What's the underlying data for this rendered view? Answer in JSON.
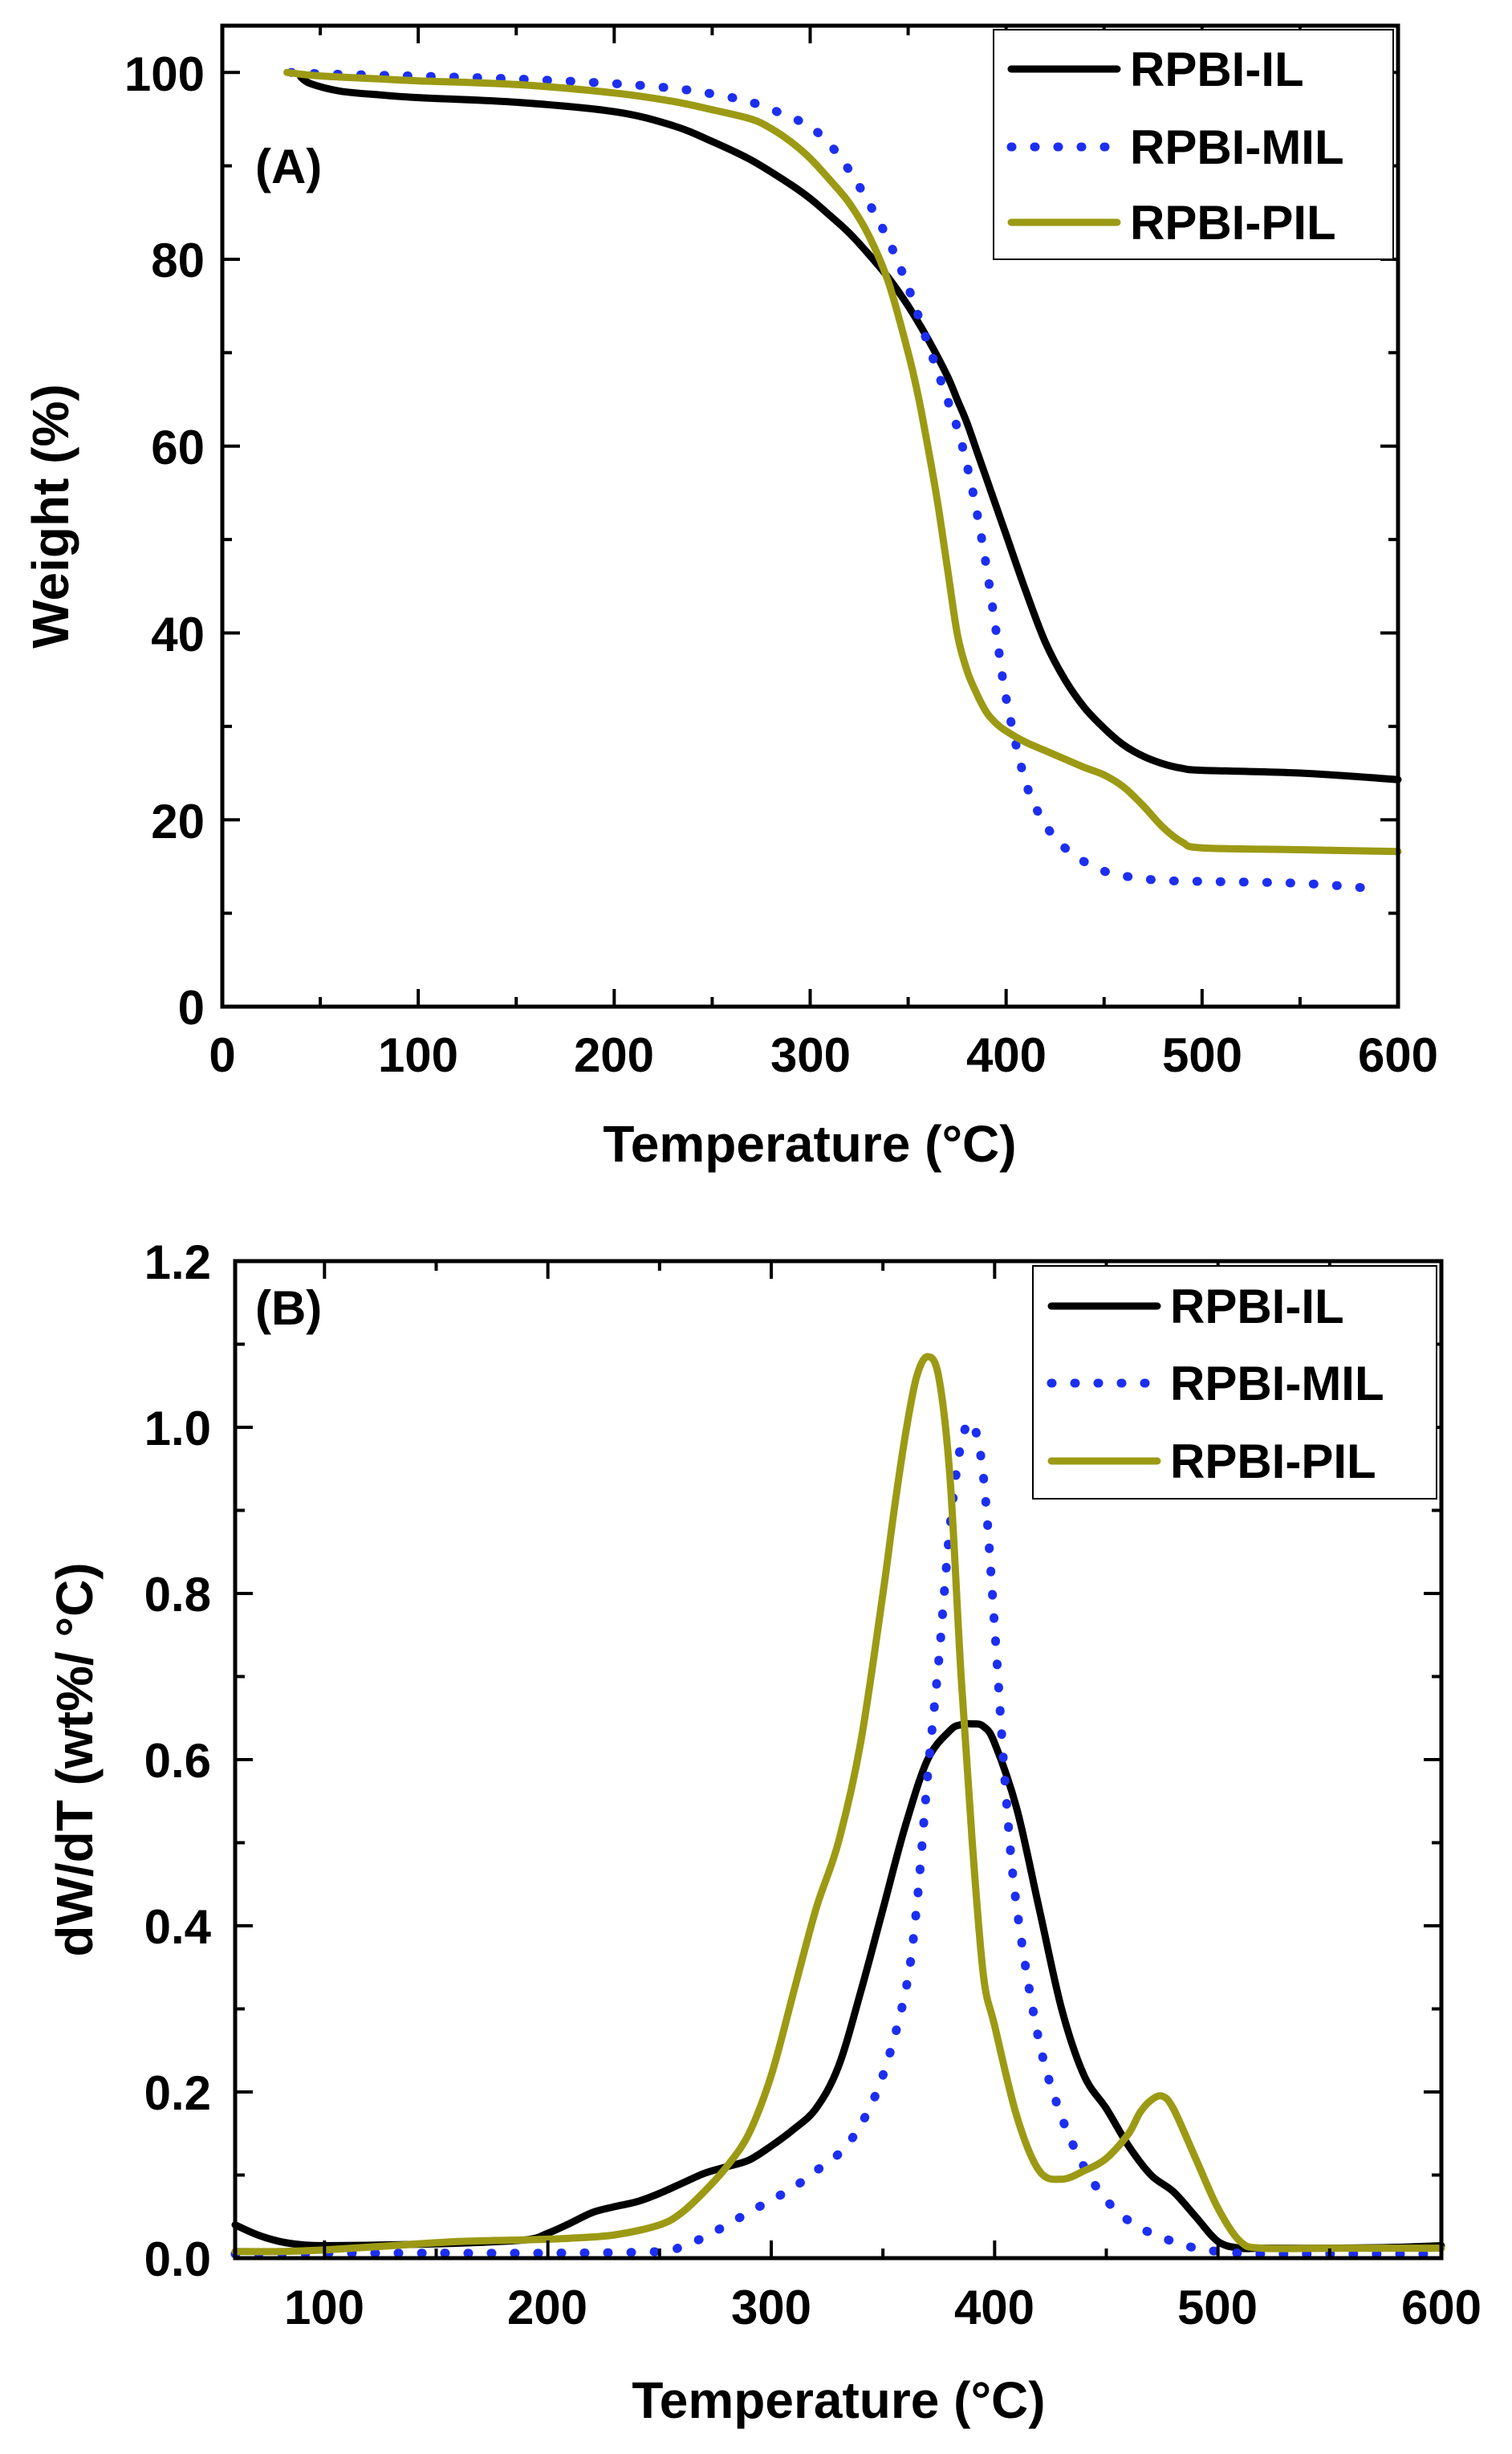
{
  "chart_data": [
    {
      "type": "line",
      "panel_label": "(A)",
      "xlabel": "Temperature (°C)",
      "ylabel": "Weight (%)",
      "xlim": [
        0,
        600
      ],
      "ylim": [
        0,
        105
      ],
      "xticks": [
        "0",
        "100",
        "200",
        "300",
        "400",
        "500",
        "600"
      ],
      "yticks": [
        "0",
        "20",
        "40",
        "60",
        "80",
        "100"
      ],
      "legend_position": "top-right",
      "series": [
        {
          "name": "RPBI-IL",
          "color": "#000000",
          "style": "solid",
          "x": [
            40,
            45,
            60,
            80,
            100,
            150,
            200,
            230,
            250,
            270,
            290,
            300,
            310,
            320,
            330,
            340,
            350,
            360,
            370,
            375,
            380,
            385,
            390,
            395,
            400,
            410,
            420,
            430,
            440,
            450,
            460,
            470,
            480,
            490,
            500,
            550,
            600
          ],
          "y": [
            99.5,
            98.8,
            98.0,
            97.6,
            97.3,
            96.8,
            95.8,
            94.3,
            92.6,
            90.6,
            88.0,
            86.5,
            84.7,
            82.8,
            80.5,
            78.0,
            75.0,
            71.5,
            67.5,
            65.0,
            62.5,
            59.5,
            56.5,
            53.5,
            50.5,
            44.5,
            39.0,
            35.0,
            32.0,
            29.8,
            28.0,
            26.8,
            26.0,
            25.5,
            25.3,
            25.0,
            24.3
          ]
        },
        {
          "name": "RPBI-MIL",
          "color": "#1c2ff0",
          "style": "dotted",
          "x": [
            35,
            45,
            60,
            80,
            100,
            150,
            200,
            230,
            250,
            270,
            290,
            300,
            310,
            320,
            330,
            340,
            350,
            360,
            370,
            375,
            380,
            385,
            390,
            395,
            400,
            410,
            420,
            430,
            440,
            450,
            460,
            470,
            480,
            500,
            550,
            590
          ],
          "y": [
            100,
            99.9,
            99.8,
            99.7,
            99.6,
            99.3,
            98.8,
            98.3,
            97.7,
            96.8,
            95.2,
            94.2,
            92.3,
            89.5,
            86.0,
            82.0,
            77.0,
            71.0,
            65.0,
            62.0,
            58.0,
            53.0,
            47.0,
            40.0,
            33.0,
            24.0,
            19.5,
            17.0,
            15.5,
            14.5,
            14.0,
            13.7,
            13.5,
            13.4,
            13.2,
            12.6
          ]
        },
        {
          "name": "RPBI-PIL",
          "color": "#9c9a14",
          "style": "solid",
          "x": [
            33,
            45,
            60,
            80,
            100,
            150,
            200,
            230,
            250,
            270,
            280,
            290,
            300,
            310,
            320,
            330,
            340,
            350,
            355,
            360,
            365,
            370,
            375,
            380,
            385,
            390,
            395,
            400,
            410,
            420,
            430,
            440,
            450,
            460,
            470,
            480,
            490,
            500,
            550,
            600
          ],
          "y": [
            100,
            99.7,
            99.5,
            99.3,
            99.1,
            98.7,
            97.8,
            96.9,
            96.0,
            95.0,
            94.0,
            92.6,
            90.8,
            88.5,
            86.0,
            82.5,
            77.5,
            70.0,
            65.5,
            60.0,
            54.0,
            47.0,
            40.0,
            36.0,
            33.5,
            31.5,
            30.3,
            29.5,
            28.3,
            27.4,
            26.5,
            25.6,
            24.8,
            23.5,
            21.5,
            19.2,
            17.6,
            17.0,
            16.8,
            16.6
          ]
        }
      ]
    },
    {
      "type": "line",
      "panel_label": "(B)",
      "xlabel": "Temperature (°C)",
      "ylabel": "dW/dT (wt%/ °C)",
      "xlim": [
        60,
        600
      ],
      "ylim": [
        0,
        1.2
      ],
      "xticks": [
        "100",
        "200",
        "300",
        "400",
        "500",
        "600"
      ],
      "yticks": [
        "0.0",
        "0.2",
        "0.4",
        "0.6",
        "0.8",
        "1.0",
        "1.2"
      ],
      "legend_position": "top-right",
      "series": [
        {
          "name": "RPBI-IL",
          "color": "#000000",
          "style": "solid",
          "x": [
            60,
            70,
            80,
            90,
            100,
            130,
            160,
            190,
            200,
            210,
            220,
            230,
            240,
            250,
            260,
            270,
            280,
            290,
            300,
            310,
            320,
            330,
            340,
            350,
            360,
            370,
            380,
            385,
            390,
            395,
            400,
            410,
            420,
            430,
            440,
            450,
            460,
            470,
            480,
            490,
            500,
            510,
            520,
            550,
            580,
            600
          ],
          "y": [
            0.04,
            0.028,
            0.02,
            0.016,
            0.015,
            0.016,
            0.018,
            0.022,
            0.03,
            0.042,
            0.055,
            0.062,
            0.068,
            0.078,
            0.09,
            0.102,
            0.11,
            0.118,
            0.135,
            0.155,
            0.18,
            0.23,
            0.32,
            0.42,
            0.52,
            0.6,
            0.635,
            0.642,
            0.643,
            0.64,
            0.62,
            0.54,
            0.42,
            0.3,
            0.22,
            0.18,
            0.135,
            0.1,
            0.08,
            0.05,
            0.02,
            0.012,
            0.012,
            0.012,
            0.013,
            0.015
          ]
        },
        {
          "name": "RPBI-MIL",
          "color": "#1c2ff0",
          "style": "dotted",
          "x": [
            60,
            100,
            150,
            200,
            250,
            260,
            270,
            280,
            290,
            300,
            310,
            320,
            330,
            340,
            350,
            360,
            365,
            370,
            375,
            380,
            385,
            390,
            395,
            400,
            405,
            410,
            420,
            430,
            440,
            450,
            460,
            470,
            480,
            490,
            500,
            510,
            520,
            550,
            600
          ],
          "y": [
            0.005,
            0.006,
            0.006,
            0.006,
            0.008,
            0.015,
            0.025,
            0.04,
            0.055,
            0.07,
            0.085,
            0.105,
            0.125,
            0.16,
            0.22,
            0.32,
            0.42,
            0.58,
            0.72,
            0.88,
            0.98,
            1.005,
            0.94,
            0.76,
            0.56,
            0.42,
            0.26,
            0.17,
            0.11,
            0.07,
            0.045,
            0.03,
            0.02,
            0.012,
            0.008,
            0.006,
            0.005,
            0.005,
            0.005
          ]
        },
        {
          "name": "RPBI-PIL",
          "color": "#9c9a14",
          "style": "solid",
          "x": [
            60,
            80,
            100,
            130,
            160,
            190,
            210,
            230,
            250,
            260,
            270,
            280,
            290,
            300,
            310,
            320,
            330,
            340,
            350,
            355,
            360,
            365,
            370,
            375,
            380,
            385,
            390,
            395,
            400,
            410,
            420,
            430,
            440,
            450,
            460,
            465,
            470,
            475,
            480,
            490,
            500,
            510,
            520,
            550,
            600
          ],
          "y": [
            0.008,
            0.008,
            0.01,
            0.015,
            0.02,
            0.022,
            0.024,
            0.028,
            0.04,
            0.055,
            0.08,
            0.11,
            0.15,
            0.22,
            0.32,
            0.42,
            0.5,
            0.62,
            0.8,
            0.9,
            0.99,
            1.06,
            1.085,
            1.06,
            0.94,
            0.7,
            0.5,
            0.34,
            0.28,
            0.17,
            0.105,
            0.095,
            0.105,
            0.12,
            0.15,
            0.175,
            0.19,
            0.195,
            0.18,
            0.12,
            0.06,
            0.02,
            0.012,
            0.012,
            0.012
          ]
        }
      ]
    }
  ]
}
